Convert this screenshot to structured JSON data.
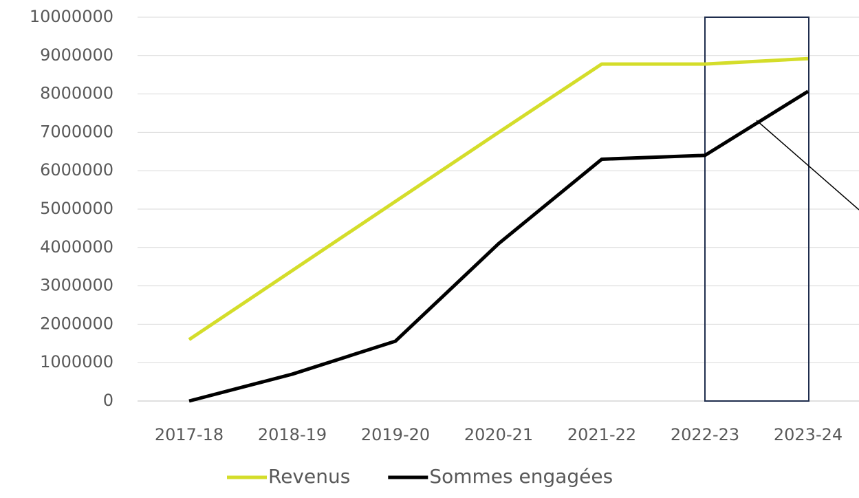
{
  "chart_data": {
    "type": "line",
    "categories": [
      "2017-18",
      "2018-19",
      "2019-20",
      "2020-21",
      "2021-22",
      "2022-23",
      "2023-24"
    ],
    "series": [
      {
        "name": "Revenus",
        "color": "#d4dd2a",
        "values": [
          1600000,
          3400000,
          5200000,
          7000000,
          8780000,
          8780000,
          8920000
        ]
      },
      {
        "name": "Sommes engagées",
        "color": "#000000",
        "values": [
          0,
          700000,
          1560000,
          4100000,
          6300000,
          6400000,
          8070000
        ]
      }
    ],
    "ylim": [
      0,
      10000000
    ],
    "yticks": [
      0,
      1000000,
      2000000,
      3000000,
      4000000,
      5000000,
      6000000,
      7000000,
      8000000,
      9000000,
      10000000
    ],
    "grid": true,
    "legend": "bottom"
  }
}
